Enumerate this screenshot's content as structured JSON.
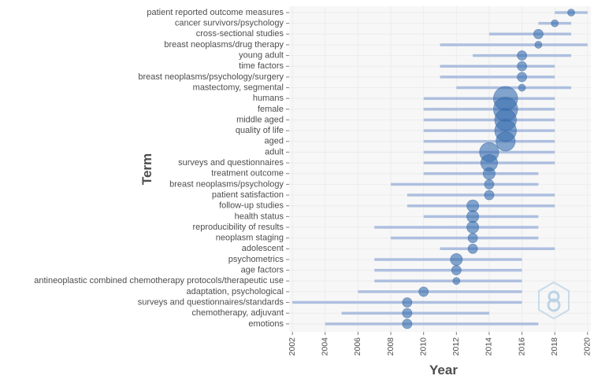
{
  "chart_data": {
    "type": "scatter",
    "xlabel": "Year",
    "ylabel": "Term",
    "xlim": [
      2001.8,
      2020.2
    ],
    "x_ticks": [
      "2002",
      "2004",
      "2006",
      "2008",
      "2010",
      "2012",
      "2014",
      "2016",
      "2018",
      "2020"
    ],
    "grid": true,
    "colors": {
      "bubble": "#3a6fb0",
      "range": "#aebfdf",
      "grid": "#ececec",
      "panel": "#f7f7f7"
    },
    "terms": [
      {
        "label": "patient reported outcome measures",
        "start": 2018,
        "end": 2020,
        "median": 2019,
        "size": 1
      },
      {
        "label": "cancer survivors/psychology",
        "start": 2017,
        "end": 2019,
        "median": 2018,
        "size": 1
      },
      {
        "label": "cross-sectional studies",
        "start": 2014,
        "end": 2019,
        "median": 2017,
        "size": 2
      },
      {
        "label": "breast neoplasms/drug therapy",
        "start": 2011,
        "end": 2020,
        "median": 2017,
        "size": 1
      },
      {
        "label": "young adult",
        "start": 2013,
        "end": 2019,
        "median": 2016,
        "size": 2
      },
      {
        "label": "time factors",
        "start": 2011,
        "end": 2018,
        "median": 2016,
        "size": 2
      },
      {
        "label": "breast neoplasms/psychology/surgery",
        "start": 2011,
        "end": 2018,
        "median": 2016,
        "size": 2
      },
      {
        "label": "mastectomy, segmental",
        "start": 2012,
        "end": 2019,
        "median": 2016,
        "size": 1
      },
      {
        "label": "humans",
        "start": 2010,
        "end": 2018,
        "median": 2015,
        "size": 8
      },
      {
        "label": "female",
        "start": 2010,
        "end": 2018,
        "median": 2015,
        "size": 8
      },
      {
        "label": "middle aged",
        "start": 2010,
        "end": 2018,
        "median": 2015,
        "size": 7
      },
      {
        "label": "quality of life",
        "start": 2010,
        "end": 2018,
        "median": 2015,
        "size": 7
      },
      {
        "label": "aged",
        "start": 2010,
        "end": 2018,
        "median": 2015,
        "size": 6
      },
      {
        "label": "adult",
        "start": 2010,
        "end": 2018,
        "median": 2014,
        "size": 6
      },
      {
        "label": "surveys and questionnaires",
        "start": 2010,
        "end": 2018,
        "median": 2014,
        "size": 5
      },
      {
        "label": "treatment outcome",
        "start": 2010,
        "end": 2017,
        "median": 2014,
        "size": 3
      },
      {
        "label": "breast neoplasms/psychology",
        "start": 2008,
        "end": 2017,
        "median": 2014,
        "size": 2
      },
      {
        "label": "patient satisfaction",
        "start": 2009,
        "end": 2018,
        "median": 2014,
        "size": 2
      },
      {
        "label": "follow-up studies",
        "start": 2009,
        "end": 2018,
        "median": 2013,
        "size": 3
      },
      {
        "label": "health status",
        "start": 2010,
        "end": 2017,
        "median": 2013,
        "size": 3
      },
      {
        "label": "reproducibility of results",
        "start": 2007,
        "end": 2017,
        "median": 2013,
        "size": 3
      },
      {
        "label": "neoplasm staging",
        "start": 2008,
        "end": 2017,
        "median": 2013,
        "size": 2
      },
      {
        "label": "adolescent",
        "start": 2011,
        "end": 2018,
        "median": 2013,
        "size": 2
      },
      {
        "label": "psychometrics",
        "start": 2007,
        "end": 2016,
        "median": 2012,
        "size": 3
      },
      {
        "label": "age factors",
        "start": 2007,
        "end": 2016,
        "median": 2012,
        "size": 2
      },
      {
        "label": "antineoplastic combined chemotherapy protocols/therapeutic use",
        "start": 2007,
        "end": 2016,
        "median": 2012,
        "size": 1
      },
      {
        "label": "adaptation, psychological",
        "start": 2006,
        "end": 2016,
        "median": 2010,
        "size": 2
      },
      {
        "label": "surveys and questionnaires/standards",
        "start": 2002,
        "end": 2016,
        "median": 2009,
        "size": 2
      },
      {
        "label": "chemotherapy, adjuvant",
        "start": 2005,
        "end": 2014,
        "median": 2009,
        "size": 2
      },
      {
        "label": "emotions",
        "start": 2004,
        "end": 2017,
        "median": 2009,
        "size": 2
      }
    ]
  },
  "watermark": {
    "icon": "bibliometrix-logo-icon",
    "color": "#bcd3e6"
  }
}
